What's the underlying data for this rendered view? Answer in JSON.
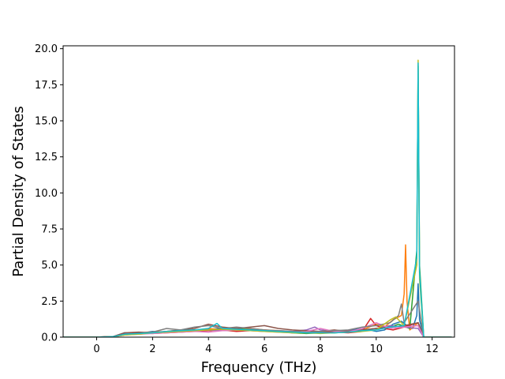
{
  "chart_data": {
    "type": "line",
    "title": "",
    "xlabel": "Frequency (THz)",
    "ylabel": "Partial Density of States",
    "xlim": [
      -1.2,
      12.8
    ],
    "ylim": [
      0,
      20.2
    ],
    "xticks": [
      0,
      2,
      4,
      6,
      8,
      10,
      12
    ],
    "xtick_labels": [
      "0",
      "2",
      "4",
      "6",
      "8",
      "10",
      "12"
    ],
    "yticks": [
      0.0,
      2.5,
      5.0,
      7.5,
      10.0,
      12.5,
      15.0,
      17.5,
      20.0
    ],
    "ytick_labels": [
      "0.0",
      "2.5",
      "5.0",
      "7.5",
      "10.0",
      "12.5",
      "15.0",
      "17.5",
      "20.0"
    ],
    "grid": false,
    "legend": "none",
    "series": [
      {
        "color": "#1f77b4",
        "x": [
          -1.2,
          0.0,
          0.6,
          1.0,
          1.5,
          2.0,
          2.5,
          3.0,
          3.5,
          4.0,
          4.5,
          5.0,
          5.5,
          6.0,
          6.5,
          7.0,
          7.5,
          8.0,
          8.5,
          9.0,
          9.5,
          10.0,
          10.3,
          10.6,
          10.9,
          11.1,
          11.3,
          11.45,
          11.5,
          11.55,
          11.7,
          12.7
        ],
        "y": [
          0,
          0,
          0.05,
          0.3,
          0.25,
          0.4,
          0.35,
          0.45,
          0.5,
          0.55,
          0.6,
          0.5,
          0.55,
          0.45,
          0.4,
          0.35,
          0.3,
          0.35,
          0.3,
          0.45,
          0.6,
          0.4,
          0.5,
          0.9,
          1.1,
          0.8,
          0.6,
          1.5,
          3.7,
          1.2,
          0,
          0
        ]
      },
      {
        "color": "#ff7f0e",
        "x": [
          -1.2,
          0.0,
          0.6,
          1.0,
          1.5,
          2.0,
          2.5,
          3.0,
          3.5,
          4.0,
          4.5,
          5.0,
          5.5,
          6.0,
          6.5,
          7.0,
          7.5,
          8.0,
          8.5,
          9.0,
          9.5,
          10.0,
          10.3,
          10.6,
          10.9,
          11.0,
          11.05,
          11.1,
          11.2,
          11.5,
          11.7,
          12.7
        ],
        "y": [
          0,
          0,
          0.05,
          0.2,
          0.3,
          0.35,
          0.4,
          0.5,
          0.45,
          0.6,
          0.5,
          0.55,
          0.6,
          0.5,
          0.45,
          0.3,
          0.35,
          0.4,
          0.35,
          0.4,
          0.5,
          0.9,
          0.7,
          1.2,
          1.5,
          3.0,
          6.4,
          2.5,
          0.5,
          1.0,
          0,
          0
        ]
      },
      {
        "color": "#2ca02c",
        "x": [
          -1.2,
          0.0,
          0.6,
          1.0,
          1.5,
          2.0,
          2.5,
          3.0,
          3.5,
          4.0,
          4.5,
          5.0,
          5.5,
          6.0,
          6.5,
          7.0,
          7.5,
          8.0,
          8.5,
          9.0,
          9.5,
          10.0,
          10.5,
          10.8,
          11.2,
          11.45,
          11.5,
          11.55,
          11.7,
          12.7
        ],
        "y": [
          0,
          0,
          0.03,
          0.15,
          0.25,
          0.3,
          0.35,
          0.4,
          0.5,
          0.45,
          0.55,
          0.6,
          0.5,
          0.45,
          0.4,
          0.3,
          0.25,
          0.3,
          0.3,
          0.35,
          0.5,
          0.6,
          0.7,
          0.9,
          0.6,
          6.0,
          18.8,
          5.0,
          0,
          0
        ]
      },
      {
        "color": "#d62728",
        "x": [
          -1.2,
          0.0,
          0.6,
          1.0,
          1.5,
          2.0,
          2.5,
          3.0,
          3.5,
          4.0,
          4.5,
          5.0,
          5.5,
          6.0,
          6.5,
          7.0,
          7.5,
          8.0,
          8.5,
          9.0,
          9.5,
          9.8,
          10.0,
          10.3,
          10.6,
          11.0,
          11.5,
          11.7,
          12.7
        ],
        "y": [
          0,
          0,
          0.04,
          0.2,
          0.3,
          0.25,
          0.3,
          0.35,
          0.4,
          0.45,
          0.5,
          0.4,
          0.45,
          0.5,
          0.4,
          0.35,
          0.3,
          0.4,
          0.35,
          0.3,
          0.4,
          1.3,
          0.8,
          0.6,
          0.5,
          0.7,
          1.0,
          0,
          0
        ]
      },
      {
        "color": "#9467bd",
        "x": [
          -1.2,
          0.0,
          0.6,
          1.0,
          1.5,
          2.0,
          2.5,
          3.0,
          3.5,
          4.0,
          4.5,
          5.0,
          5.5,
          6.0,
          6.5,
          7.0,
          7.5,
          7.8,
          8.0,
          8.5,
          9.0,
          9.5,
          10.0,
          10.5,
          11.0,
          11.5,
          11.7,
          12.7
        ],
        "y": [
          0,
          0,
          0.04,
          0.25,
          0.2,
          0.3,
          0.4,
          0.35,
          0.45,
          0.5,
          0.45,
          0.5,
          0.45,
          0.4,
          0.45,
          0.4,
          0.5,
          0.7,
          0.5,
          0.4,
          0.45,
          0.5,
          0.6,
          0.8,
          0.7,
          0.6,
          0,
          0
        ]
      },
      {
        "color": "#8c564b",
        "x": [
          -1.2,
          0.0,
          0.6,
          1.0,
          1.5,
          2.0,
          2.5,
          3.0,
          3.5,
          4.0,
          4.5,
          5.0,
          5.5,
          6.0,
          6.5,
          7.0,
          7.5,
          8.0,
          8.5,
          9.0,
          9.5,
          10.0,
          10.5,
          11.0,
          11.5,
          11.7,
          12.7
        ],
        "y": [
          0,
          0,
          0.05,
          0.3,
          0.35,
          0.3,
          0.4,
          0.5,
          0.6,
          0.9,
          0.7,
          0.6,
          0.7,
          0.8,
          0.6,
          0.5,
          0.45,
          0.4,
          0.5,
          0.4,
          0.5,
          0.6,
          0.7,
          0.8,
          1.0,
          0,
          0
        ]
      },
      {
        "color": "#e377c2",
        "x": [
          -1.2,
          0.0,
          0.6,
          1.0,
          1.5,
          2.0,
          2.5,
          3.0,
          3.5,
          4.0,
          4.5,
          5.0,
          5.5,
          6.0,
          6.5,
          7.0,
          7.5,
          8.0,
          8.5,
          9.0,
          9.5,
          10.0,
          10.5,
          11.0,
          11.5,
          11.7,
          12.7
        ],
        "y": [
          0,
          0,
          0.03,
          0.15,
          0.2,
          0.25,
          0.3,
          0.35,
          0.4,
          0.35,
          0.45,
          0.5,
          0.45,
          0.4,
          0.35,
          0.3,
          0.4,
          0.6,
          0.4,
          0.35,
          0.6,
          1.0,
          0.6,
          0.7,
          0.8,
          0,
          0
        ]
      },
      {
        "color": "#7f7f7f",
        "x": [
          -1.2,
          0.0,
          0.6,
          1.0,
          1.5,
          2.0,
          2.5,
          3.0,
          3.5,
          4.0,
          4.5,
          5.0,
          5.5,
          6.0,
          6.5,
          7.0,
          7.5,
          8.0,
          8.5,
          9.0,
          9.5,
          10.0,
          10.5,
          10.8,
          10.9,
          11.0,
          11.5,
          11.7,
          12.7
        ],
        "y": [
          0,
          0,
          0.04,
          0.2,
          0.25,
          0.35,
          0.6,
          0.5,
          0.7,
          0.8,
          0.6,
          0.7,
          0.6,
          0.5,
          0.45,
          0.4,
          0.35,
          0.4,
          0.45,
          0.5,
          0.7,
          0.8,
          1.0,
          1.5,
          2.3,
          1.0,
          2.5,
          0,
          0
        ]
      },
      {
        "color": "#bcbd22",
        "x": [
          -1.2,
          0.0,
          0.6,
          1.0,
          1.5,
          2.0,
          2.5,
          3.0,
          3.5,
          4.0,
          4.5,
          5.0,
          5.5,
          6.0,
          6.5,
          7.0,
          7.5,
          8.0,
          8.5,
          9.0,
          9.5,
          10.0,
          10.5,
          10.7,
          11.0,
          11.45,
          11.5,
          11.55,
          11.7,
          12.7
        ],
        "y": [
          0,
          0,
          0.04,
          0.15,
          0.2,
          0.3,
          0.35,
          0.4,
          0.45,
          0.5,
          0.55,
          0.5,
          0.45,
          0.4,
          0.35,
          0.3,
          0.3,
          0.25,
          0.3,
          0.35,
          0.4,
          0.5,
          1.2,
          1.4,
          0.8,
          5.0,
          19.2,
          4.0,
          0,
          0
        ]
      },
      {
        "color": "#17becf",
        "x": [
          -1.2,
          0.0,
          0.6,
          1.0,
          1.5,
          2.0,
          2.5,
          3.0,
          3.5,
          4.0,
          4.3,
          4.5,
          5.0,
          5.5,
          6.0,
          6.5,
          7.0,
          7.5,
          8.0,
          8.5,
          9.0,
          9.5,
          10.0,
          10.5,
          11.0,
          11.45,
          11.5,
          11.55,
          11.7,
          12.7
        ],
        "y": [
          0,
          0,
          0.04,
          0.2,
          0.25,
          0.3,
          0.4,
          0.45,
          0.5,
          0.6,
          0.95,
          0.6,
          0.55,
          0.5,
          0.45,
          0.4,
          0.35,
          0.3,
          0.3,
          0.3,
          0.35,
          0.45,
          0.5,
          0.7,
          0.8,
          5.5,
          19.0,
          4.5,
          0,
          0
        ]
      }
    ]
  }
}
